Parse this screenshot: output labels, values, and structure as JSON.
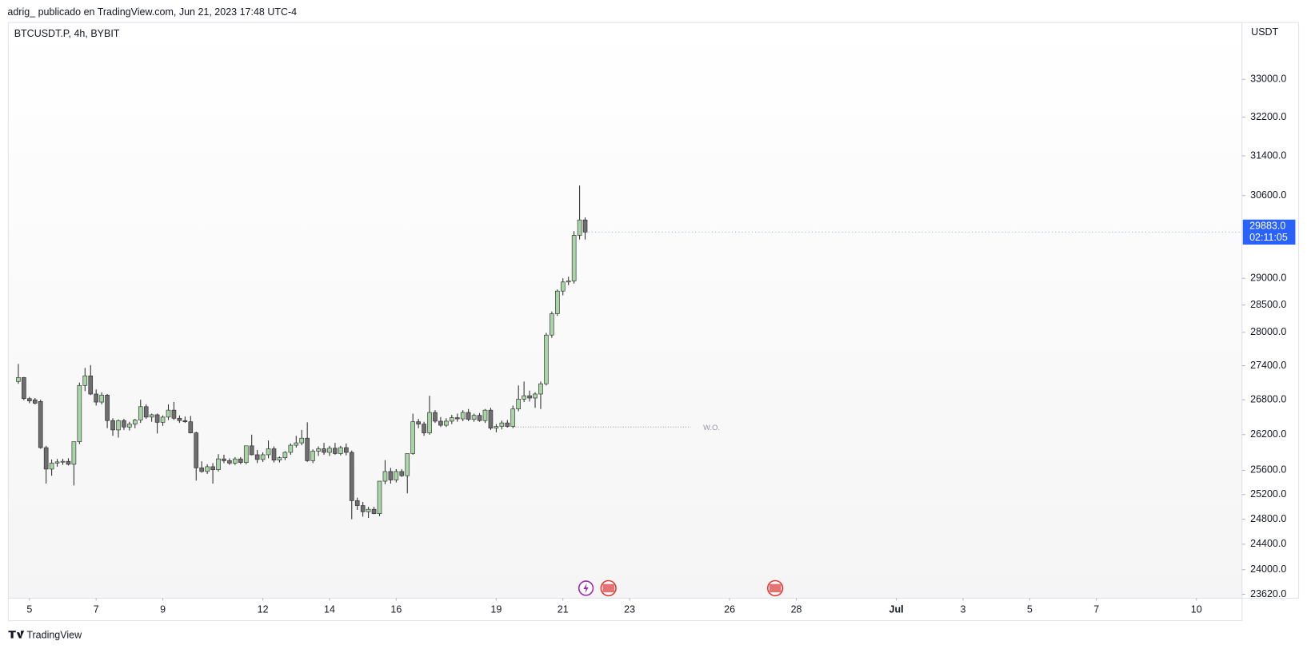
{
  "header": "adrig_ publicado en TradingView.com, Jun 21, 2023 17:48 UTC-4",
  "footer": "TradingView",
  "chart_data": {
    "type": "candlestick",
    "title": "BTCUSDT.P, 4h, BYBIT",
    "y_axis_label": "USDT",
    "log_scale": true,
    "up_color": "#a8d5a6",
    "down_color": "#6e6e6e",
    "border_color": "#2a2a2a",
    "categories": [
      null,
      null,
      null,
      null,
      null,
      null,
      null,
      null,
      null,
      null,
      null,
      null,
      null,
      null,
      null,
      null,
      null,
      null,
      null,
      null,
      null,
      null,
      null,
      null,
      null,
      null,
      null,
      null,
      null,
      null,
      null,
      null,
      null,
      null,
      null,
      null,
      null,
      null,
      null,
      null,
      null,
      null,
      null,
      null,
      null,
      null,
      null,
      null,
      null,
      null,
      null,
      null,
      null,
      null,
      null,
      null,
      null,
      null,
      null,
      null,
      null,
      null,
      null,
      null,
      null,
      null,
      null,
      null,
      null,
      null,
      null,
      null,
      null,
      null,
      null,
      null,
      null,
      null,
      null,
      null,
      null,
      null,
      null,
      null,
      null,
      null,
      null,
      null,
      null,
      null,
      null,
      null,
      null,
      null,
      null,
      null,
      null,
      null,
      null,
      null,
      null,
      null,
      null
    ],
    "open": [
      27120,
      27190,
      26820,
      26800,
      26770,
      25980,
      25620,
      25720,
      25740,
      25750,
      25700,
      26080,
      27050,
      27220,
      26900,
      26760,
      26880,
      26440,
      26280,
      26440,
      26330,
      26380,
      26450,
      26680,
      26500,
      26540,
      26410,
      26500,
      26620,
      26480,
      26440,
      26420,
      26230,
      25640,
      25580,
      25660,
      25610,
      25790,
      25760,
      25720,
      25790,
      25730,
      26010,
      25860,
      25780,
      25860,
      25960,
      25770,
      25810,
      25900,
      26020,
      26060,
      26140,
      25760,
      25920,
      25960,
      25900,
      25970,
      25880,
      25980,
      25900,
      25100,
      25020,
      24920,
      24960,
      24890,
      25420,
      25580,
      25440,
      25580,
      25510,
      25880,
      26420,
      26380,
      26230,
      26580,
      26430,
      26360,
      26430,
      26490,
      26470,
      26580,
      26460,
      26530,
      26440,
      26620,
      26310,
      26340,
      26400,
      26340,
      26640,
      26810,
      26870,
      26830,
      26900,
      27080,
      27950,
      28340,
      28760,
      28930,
      28950,
      29820,
      30120
    ],
    "high": [
      27430,
      27200,
      26850,
      26830,
      26800,
      26010,
      25780,
      25790,
      25790,
      25800,
      26080,
      27100,
      27360,
      27410,
      26980,
      26930,
      26900,
      26480,
      26460,
      26470,
      26420,
      26470,
      26800,
      26720,
      26560,
      26560,
      26530,
      26720,
      26760,
      26530,
      26510,
      26520,
      26250,
      25750,
      25700,
      25720,
      25870,
      25860,
      25800,
      25820,
      25820,
      26010,
      26200,
      25940,
      25900,
      26100,
      26000,
      25830,
      25920,
      26050,
      26180,
      26280,
      26410,
      25950,
      26000,
      26060,
      26010,
      26060,
      26010,
      26050,
      25930,
      25150,
      25080,
      25000,
      25000,
      25420,
      25770,
      25640,
      25620,
      25620,
      25880,
      26560,
      26470,
      26420,
      26870,
      26620,
      26500,
      26480,
      26540,
      26560,
      26620,
      26640,
      26560,
      26570,
      26640,
      26660,
      26380,
      26440,
      26450,
      26700,
      27050,
      27120,
      26960,
      26930,
      27120,
      27990,
      28380,
      28790,
      29000,
      29030,
      29900,
      30800,
      30170
    ],
    "low": [
      27080,
      26790,
      26740,
      26720,
      25960,
      25380,
      25510,
      25660,
      25690,
      25680,
      25350,
      26040,
      26950,
      26880,
      26700,
      26720,
      26310,
      26180,
      26150,
      26280,
      26270,
      26310,
      26400,
      26470,
      26420,
      26220,
      26350,
      26450,
      26450,
      26400,
      26400,
      26220,
      25430,
      25560,
      25540,
      25380,
      25580,
      25720,
      25690,
      25690,
      25700,
      25700,
      25850,
      25720,
      25740,
      25800,
      25730,
      25730,
      25770,
      25860,
      25980,
      26020,
      25740,
      25720,
      25840,
      25860,
      25840,
      25860,
      25850,
      25850,
      24800,
      24950,
      24840,
      24820,
      24880,
      24850,
      25370,
      25380,
      25400,
      25490,
      25220,
      25860,
      26310,
      26180,
      26200,
      26400,
      26330,
      26330,
      26380,
      26420,
      26430,
      26430,
      26420,
      26420,
      26400,
      26280,
      26240,
      26290,
      26320,
      26310,
      26600,
      26760,
      26770,
      26660,
      26640,
      27050,
      27900,
      28300,
      28680,
      28870,
      28900,
      29740,
      29740
    ],
    "close": [
      27190,
      26820,
      26780,
      26740,
      25980,
      25620,
      25720,
      25740,
      25750,
      25700,
      26080,
      27050,
      27220,
      26900,
      26760,
      26880,
      26440,
      26280,
      26440,
      26330,
      26380,
      26450,
      26680,
      26500,
      26540,
      26410,
      26500,
      26620,
      26480,
      26440,
      26420,
      26230,
      25640,
      25580,
      25660,
      25610,
      25790,
      25760,
      25720,
      25790,
      25730,
      26010,
      25860,
      25780,
      25860,
      25960,
      25770,
      25810,
      25900,
      26020,
      26060,
      26140,
      25760,
      25920,
      25960,
      25900,
      25970,
      25880,
      25980,
      25900,
      25100,
      25020,
      24920,
      24960,
      24890,
      25420,
      25580,
      25440,
      25580,
      25510,
      25880,
      26420,
      26380,
      26230,
      26580,
      26430,
      26360,
      26430,
      26490,
      26470,
      26580,
      26460,
      26530,
      26440,
      26620,
      26310,
      26340,
      26400,
      26340,
      26640,
      26810,
      26870,
      26830,
      26900,
      27080,
      27950,
      28340,
      28760,
      28930,
      28950,
      29820,
      30120,
      29883
    ],
    "last_price": {
      "value": 29883,
      "label": "29883.0",
      "countdown": "02:11:05",
      "color": "#2962ff"
    },
    "annotations": [
      {
        "label": "W.O.",
        "value": 26330,
        "x": [
          89,
          121
        ]
      }
    ],
    "xlim": [
      -1.8,
      220.2
    ],
    "xticks": [
      {
        "value": 2,
        "label": "5"
      },
      {
        "value": 14,
        "label": "7"
      },
      {
        "value": 26,
        "label": "9"
      },
      {
        "value": 44,
        "label": "12"
      },
      {
        "value": 56,
        "label": "14"
      },
      {
        "value": 68,
        "label": "16"
      },
      {
        "value": 86,
        "label": "19"
      },
      {
        "value": 98,
        "label": "21"
      },
      {
        "value": 110,
        "label": "23"
      },
      {
        "value": 128,
        "label": "26"
      },
      {
        "value": 140,
        "label": "28"
      },
      {
        "value": 158,
        "label": "Jul"
      },
      {
        "value": 170,
        "label": "3"
      },
      {
        "value": 182,
        "label": "5"
      },
      {
        "value": 194,
        "label": "7"
      },
      {
        "value": 212,
        "label": "10"
      }
    ],
    "ylim": [
      23560,
      34240
    ],
    "yticks": [
      {
        "value": 33000,
        "label": "33000.0"
      },
      {
        "value": 32200,
        "label": "32200.0"
      },
      {
        "value": 31400,
        "label": "31400.0"
      },
      {
        "value": 30600,
        "label": "30600.0"
      },
      {
        "value": 29000,
        "label": "29000.0"
      },
      {
        "value": 28500,
        "label": "28500.0"
      },
      {
        "value": 28000,
        "label": "28000.0"
      },
      {
        "value": 27400,
        "label": "27400.0"
      },
      {
        "value": 26800,
        "label": "26800.0"
      },
      {
        "value": 26200,
        "label": "26200.0"
      },
      {
        "value": 25600,
        "label": "25600.0"
      },
      {
        "value": 25200,
        "label": "25200.0"
      },
      {
        "value": 24800,
        "label": "24800.0"
      },
      {
        "value": 24400,
        "label": "24400.0"
      },
      {
        "value": 24000,
        "label": "24000.0"
      },
      {
        "value": 23620,
        "label": "23620.0"
      }
    ],
    "grid": false
  }
}
